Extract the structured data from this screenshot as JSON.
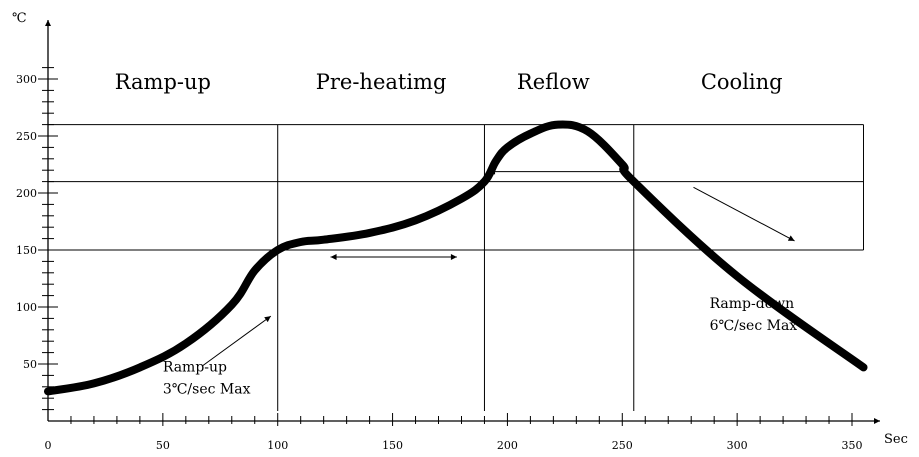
{
  "chart_data": {
    "type": "line",
    "title": "",
    "x_unit": "Sec",
    "y_unit": "℃",
    "xlim": [
      0,
      360
    ],
    "ylim": [
      0,
      320
    ],
    "x_ticks": [
      0,
      50,
      100,
      150,
      200,
      250,
      300,
      350
    ],
    "y_ticks": [
      50,
      100,
      150,
      200,
      250,
      300
    ],
    "grid": "partial reference lines",
    "zones": [
      {
        "label": "Ramp-up",
        "x_center": 50
      },
      {
        "label": "Pre-heatimg",
        "x_center": 145
      },
      {
        "label": "Reflow",
        "x_center": 220
      },
      {
        "label": "Cooling",
        "x_center": 302
      }
    ],
    "reference_vertical_x": [
      100,
      190,
      255
    ],
    "reference_horizontal": [
      {
        "y": 260,
        "x_from": 0,
        "x_to": 355
      },
      {
        "y": 210,
        "x_from": 0,
        "x_to": 355
      },
      {
        "y": 150,
        "x_from": 0,
        "x_to": 355
      }
    ],
    "duration_arrows": [
      {
        "y": 150,
        "x_from": 123,
        "x_to": 178
      },
      {
        "y": 210,
        "x_from": 192,
        "x_to": 253
      }
    ],
    "annotations": [
      {
        "lines": [
          "Ramp-up",
          "3℃/sec Max"
        ],
        "x": 50,
        "y": 24
      },
      {
        "lines": [
          "Ramp-down",
          "6℃/sec Max"
        ],
        "x": 288,
        "y": 80
      }
    ],
    "slope_arrows": [
      {
        "x_from": 67,
        "y_from": 48,
        "x_to": 97,
        "y_to": 92
      },
      {
        "x_from": 281,
        "y_from": 205,
        "x_to": 325,
        "y_to": 158
      }
    ],
    "series": [
      {
        "x": [
          0,
          20,
          40,
          60,
          80,
          90,
          100,
          110,
          120,
          140,
          160,
          180,
          190,
          195,
          200,
          210,
          222,
          235,
          250,
          255,
          300,
          355
        ],
        "y": [
          26,
          33,
          47,
          68,
          102,
          132,
          150,
          157,
          159,
          165,
          176,
          195,
          210,
          228,
          240,
          252,
          260,
          254,
          225,
          210,
          127,
          47
        ]
      }
    ]
  }
}
